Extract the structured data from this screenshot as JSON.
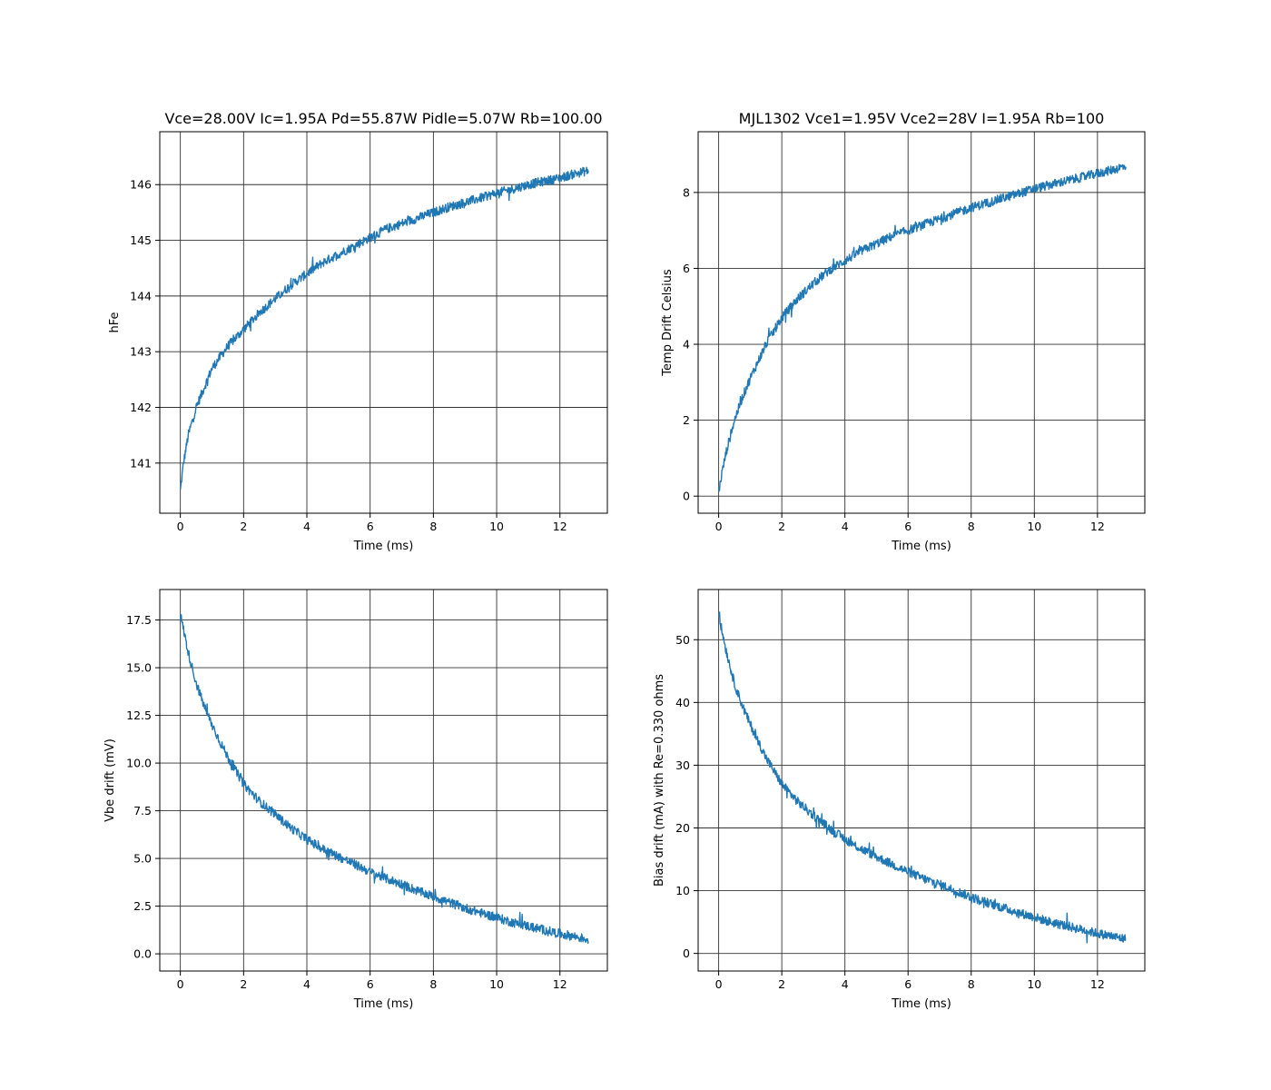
{
  "chart_data": [
    {
      "type": "line",
      "title": "Vce=28.00V Ic=1.95A Pd=55.87W Pidle=5.07W Rb=100.00",
      "xlabel": "Time (ms)",
      "ylabel": "hFe",
      "xlim": [
        -0.65,
        13.5
      ],
      "ylim": [
        140.1,
        146.95
      ],
      "xticks": [
        0,
        2,
        4,
        6,
        8,
        10,
        12
      ],
      "yticks": [
        141,
        142,
        143,
        144,
        145,
        146
      ],
      "grid": true,
      "series": [
        {
          "color": "#1f77b4",
          "x": [
            0,
            0.1,
            0.25,
            0.5,
            0.75,
            1,
            1.5,
            2,
            2.5,
            3,
            3.5,
            4,
            4.5,
            5,
            5.5,
            6,
            6.5,
            7,
            7.5,
            8,
            8.5,
            9,
            9.5,
            10,
            10.5,
            11,
            11.5,
            12,
            12.5,
            12.9
          ],
          "y": [
            140.5,
            141.0,
            141.5,
            142.0,
            142.35,
            142.7,
            143.1,
            143.4,
            143.7,
            143.95,
            144.2,
            144.4,
            144.6,
            144.75,
            144.9,
            145.05,
            145.2,
            145.3,
            145.4,
            145.5,
            145.6,
            145.68,
            145.76,
            145.85,
            145.92,
            146.0,
            146.06,
            146.12,
            146.2,
            146.25
          ]
        }
      ]
    },
    {
      "type": "line",
      "title": "MJL1302 Vce1=1.95V Vce2=28V I=1.95A Rb=100",
      "xlabel": "Time (ms)",
      "ylabel": "Temp Drift Celsius",
      "xlim": [
        -0.65,
        13.5
      ],
      "ylim": [
        -0.45,
        9.6
      ],
      "xticks": [
        0,
        2,
        4,
        6,
        8,
        10,
        12
      ],
      "yticks": [
        0,
        2,
        4,
        6,
        8
      ],
      "grid": true,
      "series": [
        {
          "color": "#1f77b4",
          "x": [
            0,
            0.1,
            0.25,
            0.5,
            0.75,
            1,
            1.5,
            2,
            2.5,
            3,
            3.5,
            4,
            4.5,
            5,
            5.5,
            6,
            6.5,
            7,
            7.5,
            8,
            8.5,
            9,
            9.5,
            10,
            10.5,
            11,
            11.5,
            12,
            12.5,
            12.9
          ],
          "y": [
            0.1,
            0.6,
            1.2,
            2.0,
            2.6,
            3.1,
            4.0,
            4.7,
            5.2,
            5.6,
            5.95,
            6.2,
            6.45,
            6.65,
            6.85,
            7.0,
            7.15,
            7.3,
            7.45,
            7.6,
            7.72,
            7.85,
            7.97,
            8.1,
            8.2,
            8.3,
            8.4,
            8.5,
            8.6,
            8.7
          ]
        }
      ]
    },
    {
      "type": "line",
      "title": "",
      "xlabel": "Time (ms)",
      "ylabel": "Vbe drift (mV)",
      "xlim": [
        -0.65,
        13.5
      ],
      "ylim": [
        -0.9,
        19.1
      ],
      "xticks": [
        0,
        2,
        4,
        6,
        8,
        10,
        12
      ],
      "yticks": [
        0.0,
        2.5,
        5.0,
        7.5,
        10.0,
        12.5,
        15.0,
        17.5
      ],
      "ytick_labels": [
        "0.0",
        "2.5",
        "5.0",
        "7.5",
        "10.0",
        "12.5",
        "15.0",
        "17.5"
      ],
      "grid": true,
      "series": [
        {
          "color": "#1f77b4",
          "x": [
            0,
            0.1,
            0.25,
            0.5,
            0.75,
            1,
            1.5,
            2,
            2.5,
            3,
            3.5,
            4,
            4.5,
            5,
            5.5,
            6,
            6.5,
            7,
            7.5,
            8,
            8.5,
            9,
            9.5,
            10,
            10.5,
            11,
            11.5,
            12,
            12.5,
            12.9
          ],
          "y": [
            17.8,
            17.0,
            15.8,
            14.2,
            13.0,
            12.0,
            10.3,
            8.9,
            8.0,
            7.3,
            6.6,
            6.0,
            5.5,
            5.1,
            4.7,
            4.3,
            3.95,
            3.65,
            3.3,
            3.0,
            2.7,
            2.4,
            2.15,
            1.9,
            1.65,
            1.45,
            1.25,
            1.05,
            0.9,
            0.75
          ]
        }
      ]
    },
    {
      "type": "line",
      "title": "",
      "xlabel": "Time (ms)",
      "ylabel": "Bias drift (mA) with Re=0.330 ohms",
      "xlim": [
        -0.65,
        13.5
      ],
      "ylim": [
        -2.8,
        58.0
      ],
      "xticks": [
        0,
        2,
        4,
        6,
        8,
        10,
        12
      ],
      "yticks": [
        0,
        10,
        20,
        30,
        40,
        50
      ],
      "grid": true,
      "series": [
        {
          "color": "#1f77b4",
          "x": [
            0,
            0.1,
            0.25,
            0.5,
            0.75,
            1,
            1.5,
            2,
            2.5,
            3,
            3.5,
            4,
            4.5,
            5,
            5.5,
            6,
            6.5,
            7,
            7.5,
            8,
            8.5,
            9,
            9.5,
            10,
            10.5,
            11,
            11.5,
            12,
            12.5,
            12.9
          ],
          "y": [
            54.0,
            51.5,
            48.0,
            43.0,
            39.5,
            36.5,
            31.2,
            27.0,
            24.2,
            22.0,
            20.0,
            18.2,
            16.7,
            15.4,
            14.2,
            13.0,
            11.9,
            11.0,
            10.0,
            9.0,
            8.1,
            7.3,
            6.5,
            5.8,
            5.0,
            4.4,
            3.8,
            3.2,
            2.7,
            2.3
          ]
        }
      ]
    }
  ]
}
